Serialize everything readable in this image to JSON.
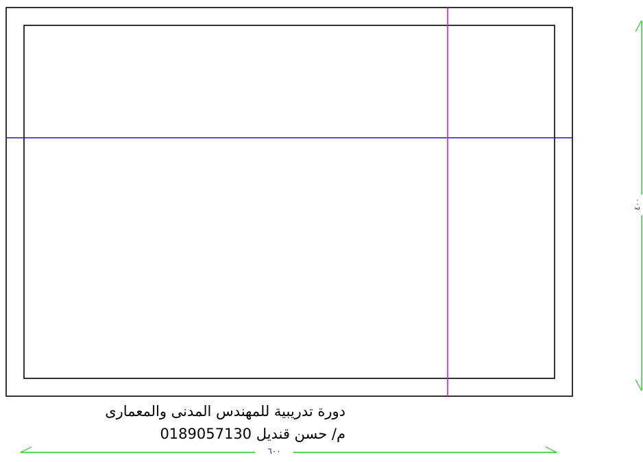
{
  "drawing": {
    "colors": {
      "outline": "#000000",
      "horizontal_axis": "#1a1aa8",
      "vertical_axis": "#d21ed2",
      "dimension_line": "#22cc22",
      "dimension_text": "#1a1aa8"
    },
    "dimensions": {
      "horizontal_label": "٦٠٠",
      "vertical_label": "٤٠٠"
    }
  },
  "caption": {
    "line1": "دورة تدريبية للمهندس المدنى والمعمارى",
    "line2": "م/ حسن قنديل    0189057130"
  }
}
